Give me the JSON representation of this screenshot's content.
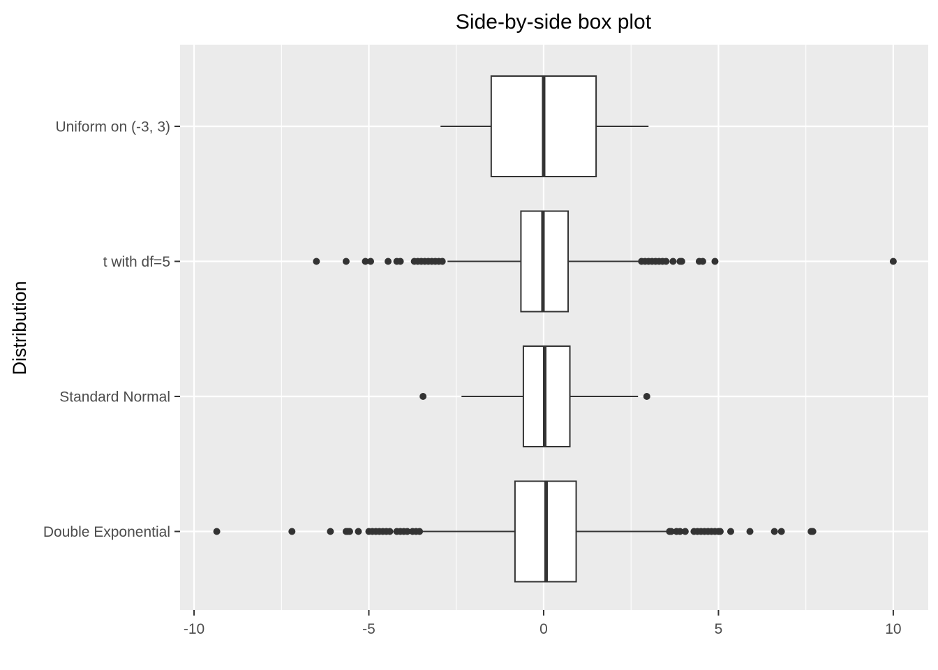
{
  "chart_data": {
    "type": "boxplot",
    "orientation": "horizontal",
    "title": "Side-by-side box plot",
    "xlabel": "",
    "ylabel": "Distribution",
    "xlim": [
      -10.4,
      11.0
    ],
    "x_ticks": [
      -10,
      -5,
      0,
      5,
      10
    ],
    "x_tick_labels": [
      "-10",
      "-5",
      "0",
      "5",
      "10"
    ],
    "x_minor_ticks": [
      -7.5,
      -2.5,
      2.5,
      7.5
    ],
    "grid": true,
    "legend": "none",
    "categories": [
      "Uniform on (-3, 3)",
      "t with df=5",
      "Standard Normal",
      "Double Exponential"
    ],
    "boxes": [
      {
        "name": "Uniform on (-3, 3)",
        "whisker_low": -2.95,
        "q1": -1.5,
        "median": 0.0,
        "q3": 1.5,
        "whisker_high": 3.0,
        "outliers": []
      },
      {
        "name": "t with df=5",
        "whisker_low": -2.75,
        "q1": -0.65,
        "median": -0.02,
        "q3": 0.7,
        "whisker_high": 2.75,
        "outliers": [
          -6.5,
          -5.65,
          -5.1,
          -4.95,
          -4.45,
          -4.2,
          -4.1,
          -3.7,
          -3.6,
          -3.5,
          -3.4,
          -3.3,
          -3.2,
          -3.1,
          -3.0,
          -2.9,
          2.8,
          2.9,
          3.0,
          3.1,
          3.2,
          3.3,
          3.4,
          3.5,
          3.7,
          3.9,
          3.95,
          4.45,
          4.55,
          4.9,
          10.0
        ]
      },
      {
        "name": "Standard Normal",
        "whisker_low": -2.35,
        "q1": -0.58,
        "median": 0.03,
        "q3": 0.75,
        "whisker_high": 2.7,
        "outliers": [
          -3.45,
          2.95
        ]
      },
      {
        "name": "Double Exponential",
        "whisker_low": -3.5,
        "q1": -0.82,
        "median": 0.07,
        "q3": 0.93,
        "whisker_high": 3.6,
        "outliers": [
          -9.35,
          -7.2,
          -6.1,
          -5.65,
          -5.6,
          -5.55,
          -5.3,
          -5.0,
          -4.9,
          -4.8,
          -4.7,
          -4.6,
          -4.5,
          -4.4,
          -4.2,
          -4.1,
          -4.0,
          -3.9,
          -3.75,
          -3.65,
          -3.55,
          3.6,
          3.65,
          3.8,
          3.9,
          4.05,
          4.3,
          4.4,
          4.5,
          4.6,
          4.7,
          4.8,
          4.9,
          5.0,
          5.05,
          5.35,
          5.9,
          6.6,
          6.8,
          7.65,
          7.7
        ]
      }
    ],
    "colors": {
      "panel_background": "#EBEBEB",
      "grid": "#FFFFFF",
      "box_fill": "#FFFFFF",
      "box_stroke": "#333333",
      "outlier": "#333333",
      "tick_text": "#4D4D4D",
      "title_text": "#000000"
    }
  }
}
